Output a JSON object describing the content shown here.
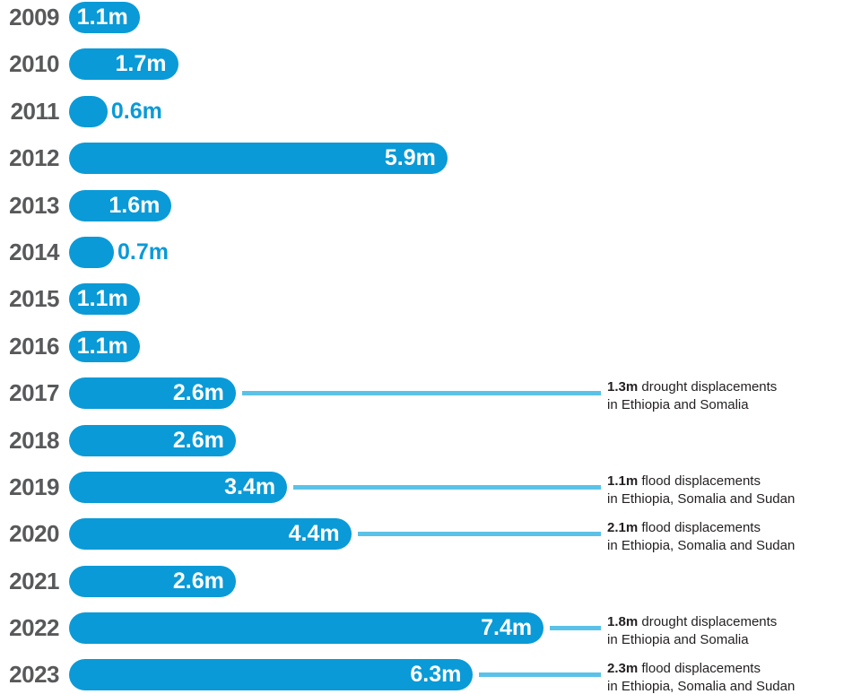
{
  "chart_data": {
    "type": "bar",
    "orientation": "horizontal",
    "unit": "millions of displacements",
    "categories": [
      "2009",
      "2010",
      "2011",
      "2012",
      "2013",
      "2014",
      "2015",
      "2016",
      "2017",
      "2018",
      "2019",
      "2020",
      "2021",
      "2022",
      "2023"
    ],
    "values": [
      1.1,
      1.7,
      0.6,
      5.9,
      1.6,
      0.7,
      1.1,
      1.1,
      2.6,
      2.6,
      3.4,
      4.4,
      2.6,
      7.4,
      6.3
    ],
    "value_labels": [
      "1.1m",
      "1.7m",
      "0.6m",
      "5.9m",
      "1.6m",
      "0.7m",
      "1.1m",
      "1.1m",
      "2.6m",
      "2.6m",
      "3.4m",
      "4.4m",
      "2.6m",
      "7.4m",
      "6.3m"
    ],
    "annotations": [
      {
        "year": "2017",
        "bold": "1.3m",
        "line1_rest": "drought displacements",
        "line2": "in Ethiopia and Somalia"
      },
      {
        "year": "2019",
        "bold": "1.1m",
        "line1_rest": "flood displacements",
        "line2": "in Ethiopia, Somalia and Sudan"
      },
      {
        "year": "2020",
        "bold": "2.1m",
        "line1_rest": "flood displacements",
        "line2": "in Ethiopia, Somalia and Sudan"
      },
      {
        "year": "2022",
        "bold": "1.8m",
        "line1_rest": "drought displacements",
        "line2": "in Ethiopia and Somalia"
      },
      {
        "year": "2023",
        "bold": "2.3m",
        "line1_rest": "flood displacements",
        "line2": "in Ethiopia, Somalia and Sudan"
      }
    ],
    "grid": false,
    "legend": false,
    "axes_shown": false
  },
  "colors": {
    "bar": "#0A9AD7",
    "connector_line": "#5BC2E7",
    "year_label": "#58595B",
    "value_label_inside": "#FFFFFF",
    "value_label_outside": "#0A9AD7",
    "annotation_text": "#231F20",
    "background": "#FFFFFF"
  }
}
